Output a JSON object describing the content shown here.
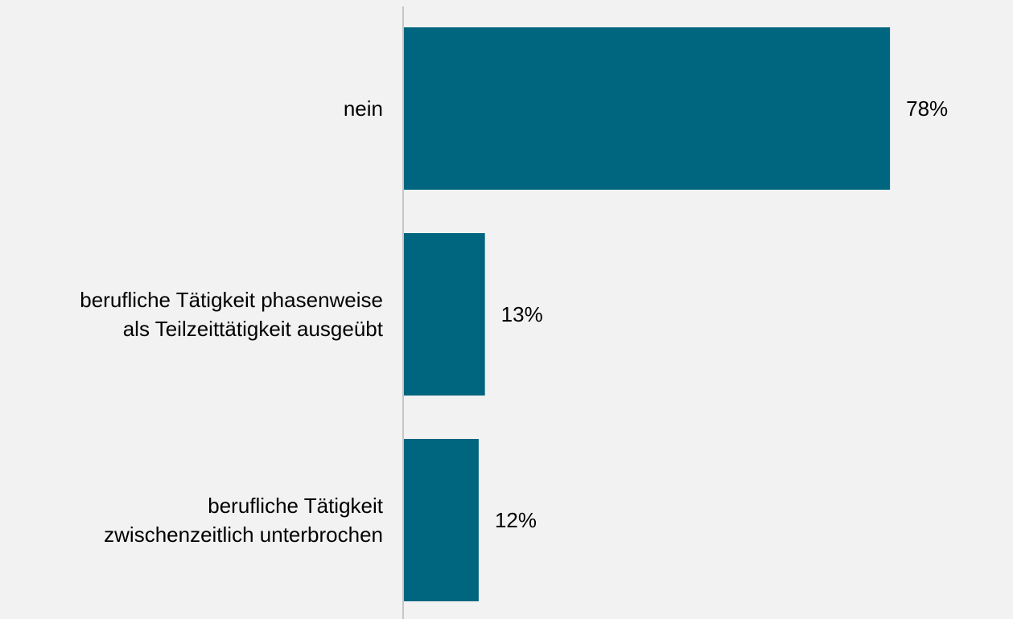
{
  "chart_data": {
    "type": "bar",
    "orientation": "horizontal",
    "categories": [
      [
        "nein"
      ],
      [
        "berufliche Tätigkeit phasenweise",
        "als Teilzeittätigkeit ausgeübt"
      ],
      [
        "berufliche Tätigkeit",
        "zwischenzeitlich unterbrochen"
      ]
    ],
    "values": [
      78,
      13,
      12
    ],
    "value_labels": [
      "78%",
      "13%",
      "12%"
    ],
    "unit": "%",
    "xlim": [
      0,
      100
    ],
    "title": "",
    "xlabel": "",
    "ylabel": "",
    "grid": false,
    "legend": "none"
  },
  "colors": {
    "bar": "#006680",
    "axis": "#c6c6c6",
    "background": "#f2f2f2",
    "text": "#000000"
  }
}
